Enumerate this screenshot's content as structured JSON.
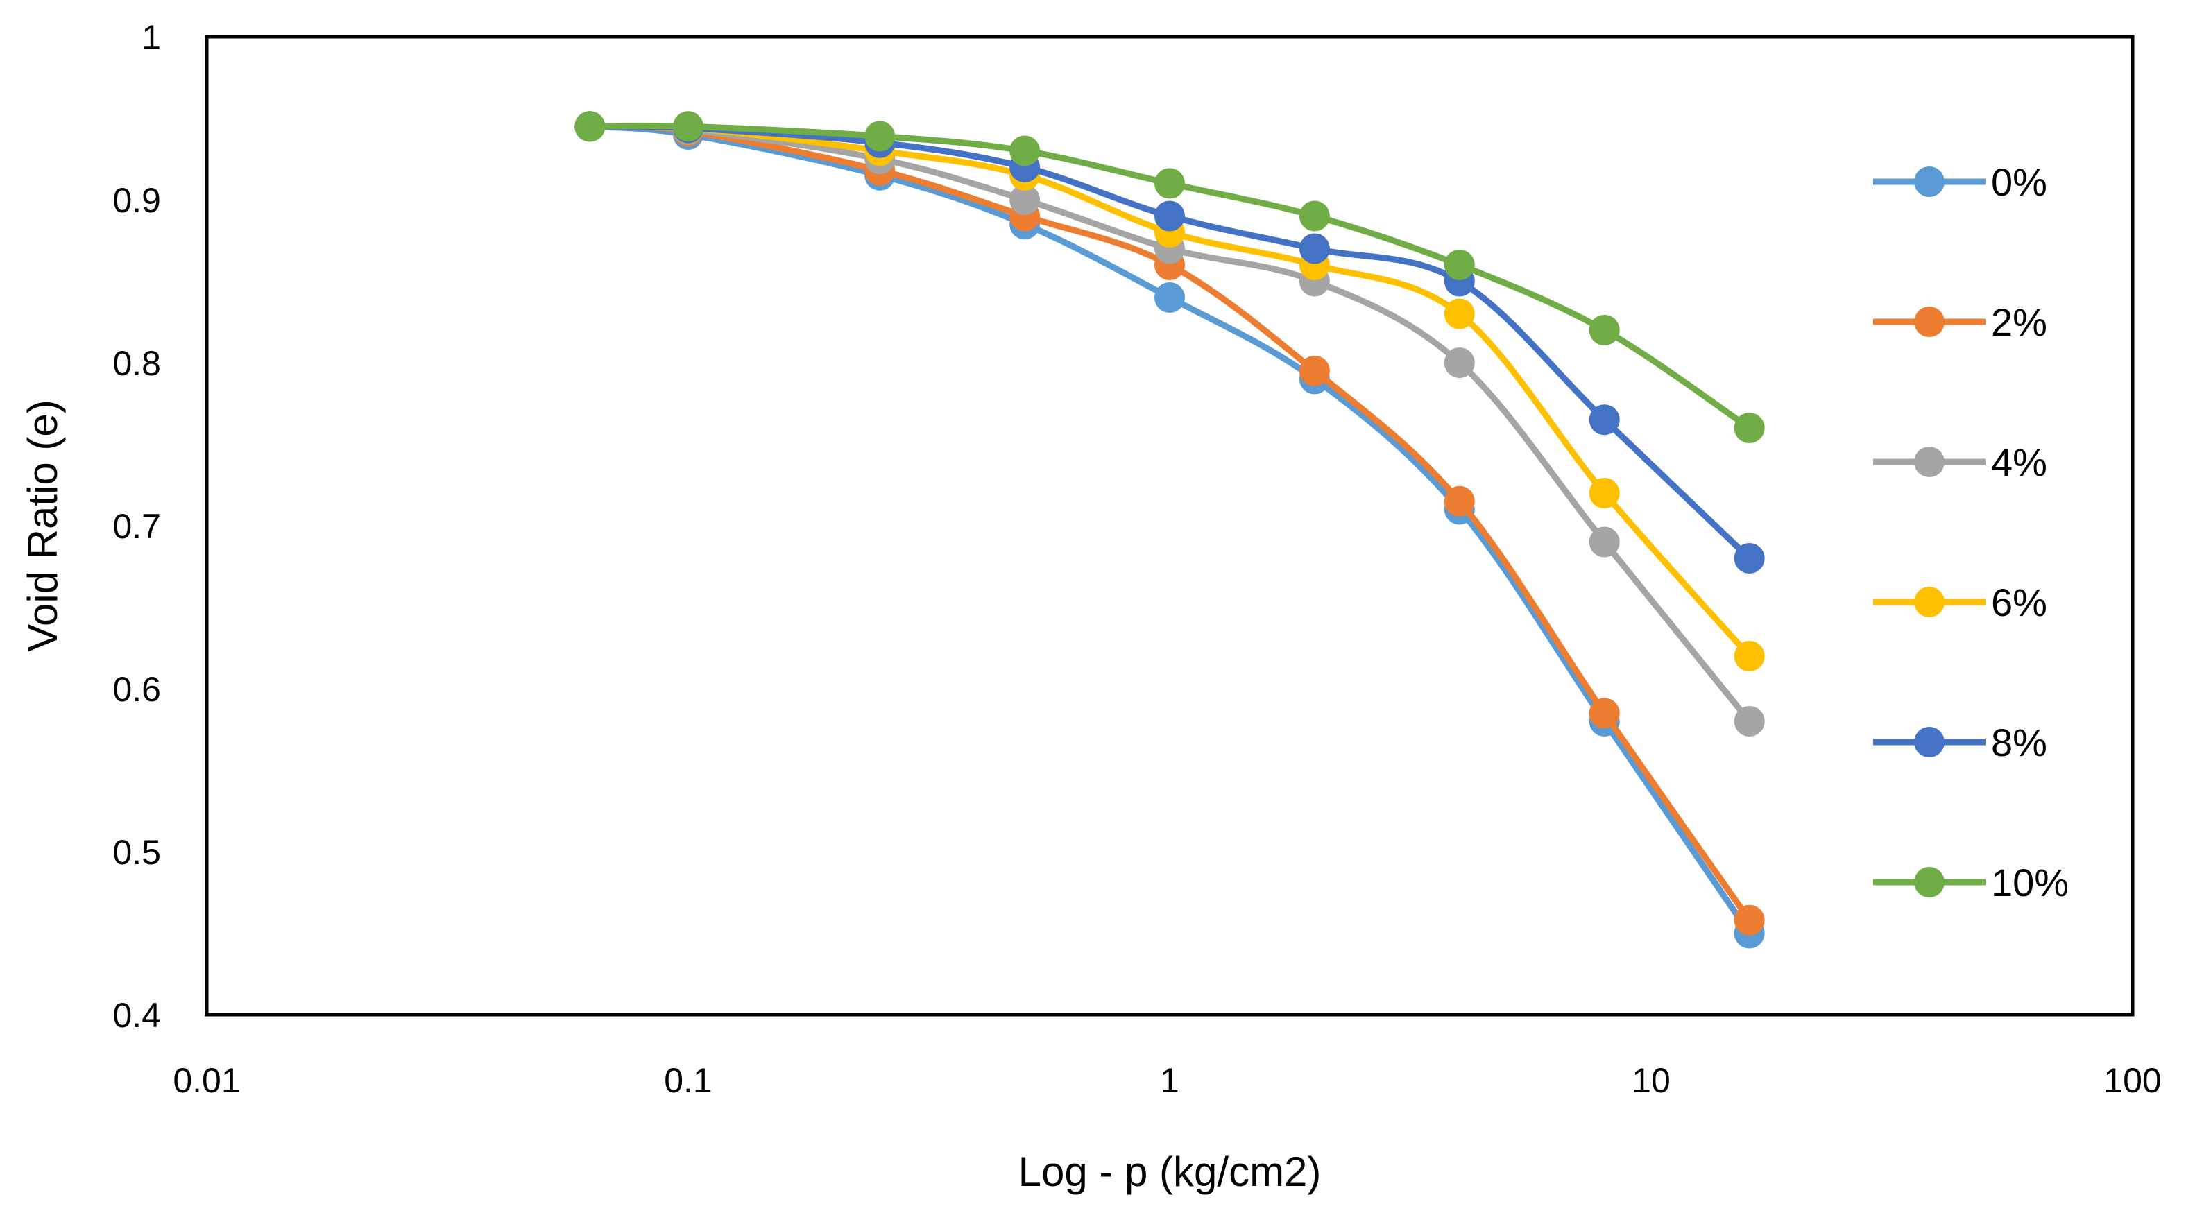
{
  "chart_data": {
    "type": "line",
    "title": "",
    "xlabel": "Log - p (kg/cm2)",
    "ylabel": "Void Ratio (e)",
    "x_scale": "log",
    "xlim": [
      0.01,
      100
    ],
    "ylim": [
      0.4,
      1.0
    ],
    "x_ticks": [
      0.01,
      0.1,
      1,
      10,
      100
    ],
    "x_tick_labels": [
      "0.01",
      "0.1",
      "1",
      "10",
      "100"
    ],
    "y_ticks": [
      0.4,
      0.5,
      0.6,
      0.7,
      0.8,
      0.9,
      1.0
    ],
    "y_tick_labels": [
      "0.4",
      "0.5",
      "0.6",
      "0.7",
      "0.8",
      "0.9",
      "1"
    ],
    "grid": false,
    "legend_position": "right",
    "x": [
      0.0625,
      0.1,
      0.25,
      0.5,
      1,
      2,
      4,
      8,
      16
    ],
    "series": [
      {
        "name": "0%",
        "color": "#5B9BD5",
        "values": [
          0.945,
          0.94,
          0.915,
          0.885,
          0.84,
          0.79,
          0.71,
          0.58,
          0.45
        ]
      },
      {
        "name": "2%",
        "color": "#ED7D31",
        "values": [
          0.945,
          0.942,
          0.918,
          0.89,
          0.86,
          0.795,
          0.715,
          0.585,
          0.458
        ]
      },
      {
        "name": "4%",
        "color": "#A5A5A5",
        "values": [
          0.945,
          0.943,
          0.925,
          0.9,
          0.87,
          0.85,
          0.8,
          0.69,
          0.58
        ]
      },
      {
        "name": "6%",
        "color": "#FFC000",
        "values": [
          0.945,
          0.944,
          0.93,
          0.915,
          0.88,
          0.86,
          0.83,
          0.72,
          0.62
        ]
      },
      {
        "name": "8%",
        "color": "#4472C4",
        "values": [
          0.945,
          0.944,
          0.935,
          0.92,
          0.89,
          0.87,
          0.85,
          0.765,
          0.68
        ]
      },
      {
        "name": "10%",
        "color": "#70AD47",
        "values": [
          0.945,
          0.945,
          0.939,
          0.93,
          0.91,
          0.89,
          0.86,
          0.82,
          0.76
        ]
      }
    ]
  }
}
